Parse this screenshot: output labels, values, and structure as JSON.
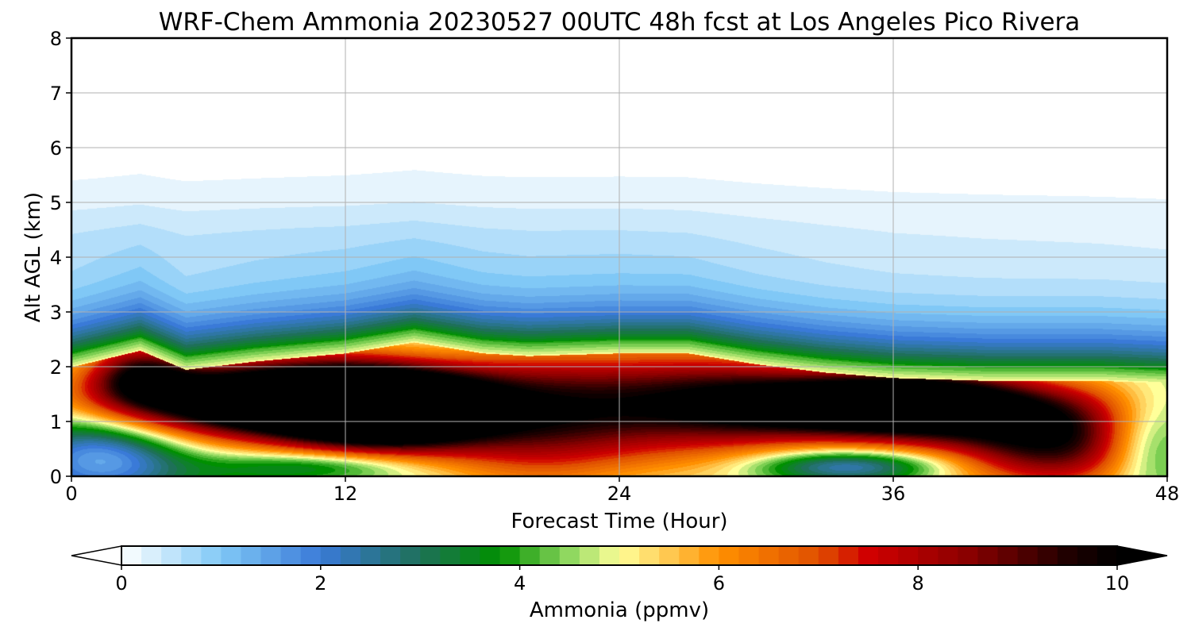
{
  "chart_data": {
    "type": "heatmap",
    "title": "WRF-Chem Ammonia  20230527 00UTC 48h fcst at Los Angeles Pico Rivera",
    "xlabel": "Forecast Time (Hour)",
    "ylabel": "Alt AGL (km)",
    "xlim": [
      0,
      48
    ],
    "ylim": [
      0,
      8
    ],
    "x_ticks": [
      "0",
      "12",
      "24",
      "36",
      "48"
    ],
    "y_ticks": [
      "0",
      "1",
      "2",
      "3",
      "4",
      "5",
      "6",
      "7",
      "8"
    ],
    "grid": true,
    "value_range": [
      0,
      10
    ],
    "colorbar": {
      "label": "Ammonia  (ppmv)",
      "ticks": [
        "0",
        "2",
        "4",
        "6",
        "8",
        "10"
      ],
      "min": 0,
      "max": 10,
      "extend": "both",
      "stops": [
        {
          "v": 0,
          "c": "#ffffff"
        },
        {
          "v": 1,
          "c": "#80c8f6"
        },
        {
          "v": 2,
          "c": "#3a7ad8"
        },
        {
          "v": 3,
          "c": "#1e7058"
        },
        {
          "v": 3.8,
          "c": "#009000"
        },
        {
          "v": 4.5,
          "c": "#90d860"
        },
        {
          "v": 5,
          "c": "#ffff9a"
        },
        {
          "v": 5.5,
          "c": "#ffc850"
        },
        {
          "v": 6,
          "c": "#ff9000"
        },
        {
          "v": 7,
          "c": "#e05000"
        },
        {
          "v": 7.5,
          "c": "#d00000"
        },
        {
          "v": 8.5,
          "c": "#8a0000"
        },
        {
          "v": 9.5,
          "c": "#200000"
        },
        {
          "v": 10,
          "c": "#000000"
        }
      ]
    },
    "features": {
      "low_field_base": 4.5,
      "low_field_scale": 0.6,
      "upper_layer_km": [
        0.3,
        0.25,
        0.1,
        0.05
      ],
      "upper_layer_time": [
        0,
        10,
        24,
        36,
        48
      ],
      "top_profile": {
        "time": [
          0,
          3,
          5,
          8,
          12,
          15,
          18,
          20,
          24,
          27,
          30,
          33,
          36,
          40,
          45,
          48
        ],
        "alt": [
          2.25,
          2.55,
          2.2,
          2.35,
          2.5,
          2.7,
          2.5,
          2.45,
          2.5,
          2.5,
          2.3,
          2.15,
          2.05,
          2.0,
          2.0,
          1.95
        ]
      },
      "blobs": [
        {
          "t": 9,
          "z": 1.4,
          "st": 5.5,
          "sz": 0.5,
          "a": 9
        },
        {
          "t": 14,
          "z": 1.2,
          "st": 3,
          "sz": 0.5,
          "a": 6
        },
        {
          "t": 35.5,
          "z": 1.3,
          "st": 5,
          "sz": 0.45,
          "a": 9
        },
        {
          "t": 21,
          "z": 1.0,
          "st": 5,
          "sz": 0.8,
          "a": 3.5
        },
        {
          "t": 26,
          "z": 1.5,
          "st": 4,
          "sz": 0.7,
          "a": 2.5
        },
        {
          "t": 43,
          "z": 0.6,
          "st": 3,
          "sz": 0.6,
          "a": 5
        },
        {
          "t": 3,
          "z": 1.9,
          "st": 1.5,
          "sz": 0.4,
          "a": 3
        }
      ],
      "low_green_patches": [
        {
          "t": 1.5,
          "z": 0.4,
          "st": 2.5,
          "sz": 0.6,
          "a": 3.5
        },
        {
          "t": 11,
          "z": 0.2,
          "st": 3,
          "sz": 0.2,
          "a": 2
        },
        {
          "t": 34,
          "z": 0.2,
          "st": 3,
          "sz": 0.2,
          "a": 2.5
        },
        {
          "t": 47,
          "z": 0.6,
          "st": 1.5,
          "sz": 0.6,
          "a": 2
        }
      ]
    }
  }
}
